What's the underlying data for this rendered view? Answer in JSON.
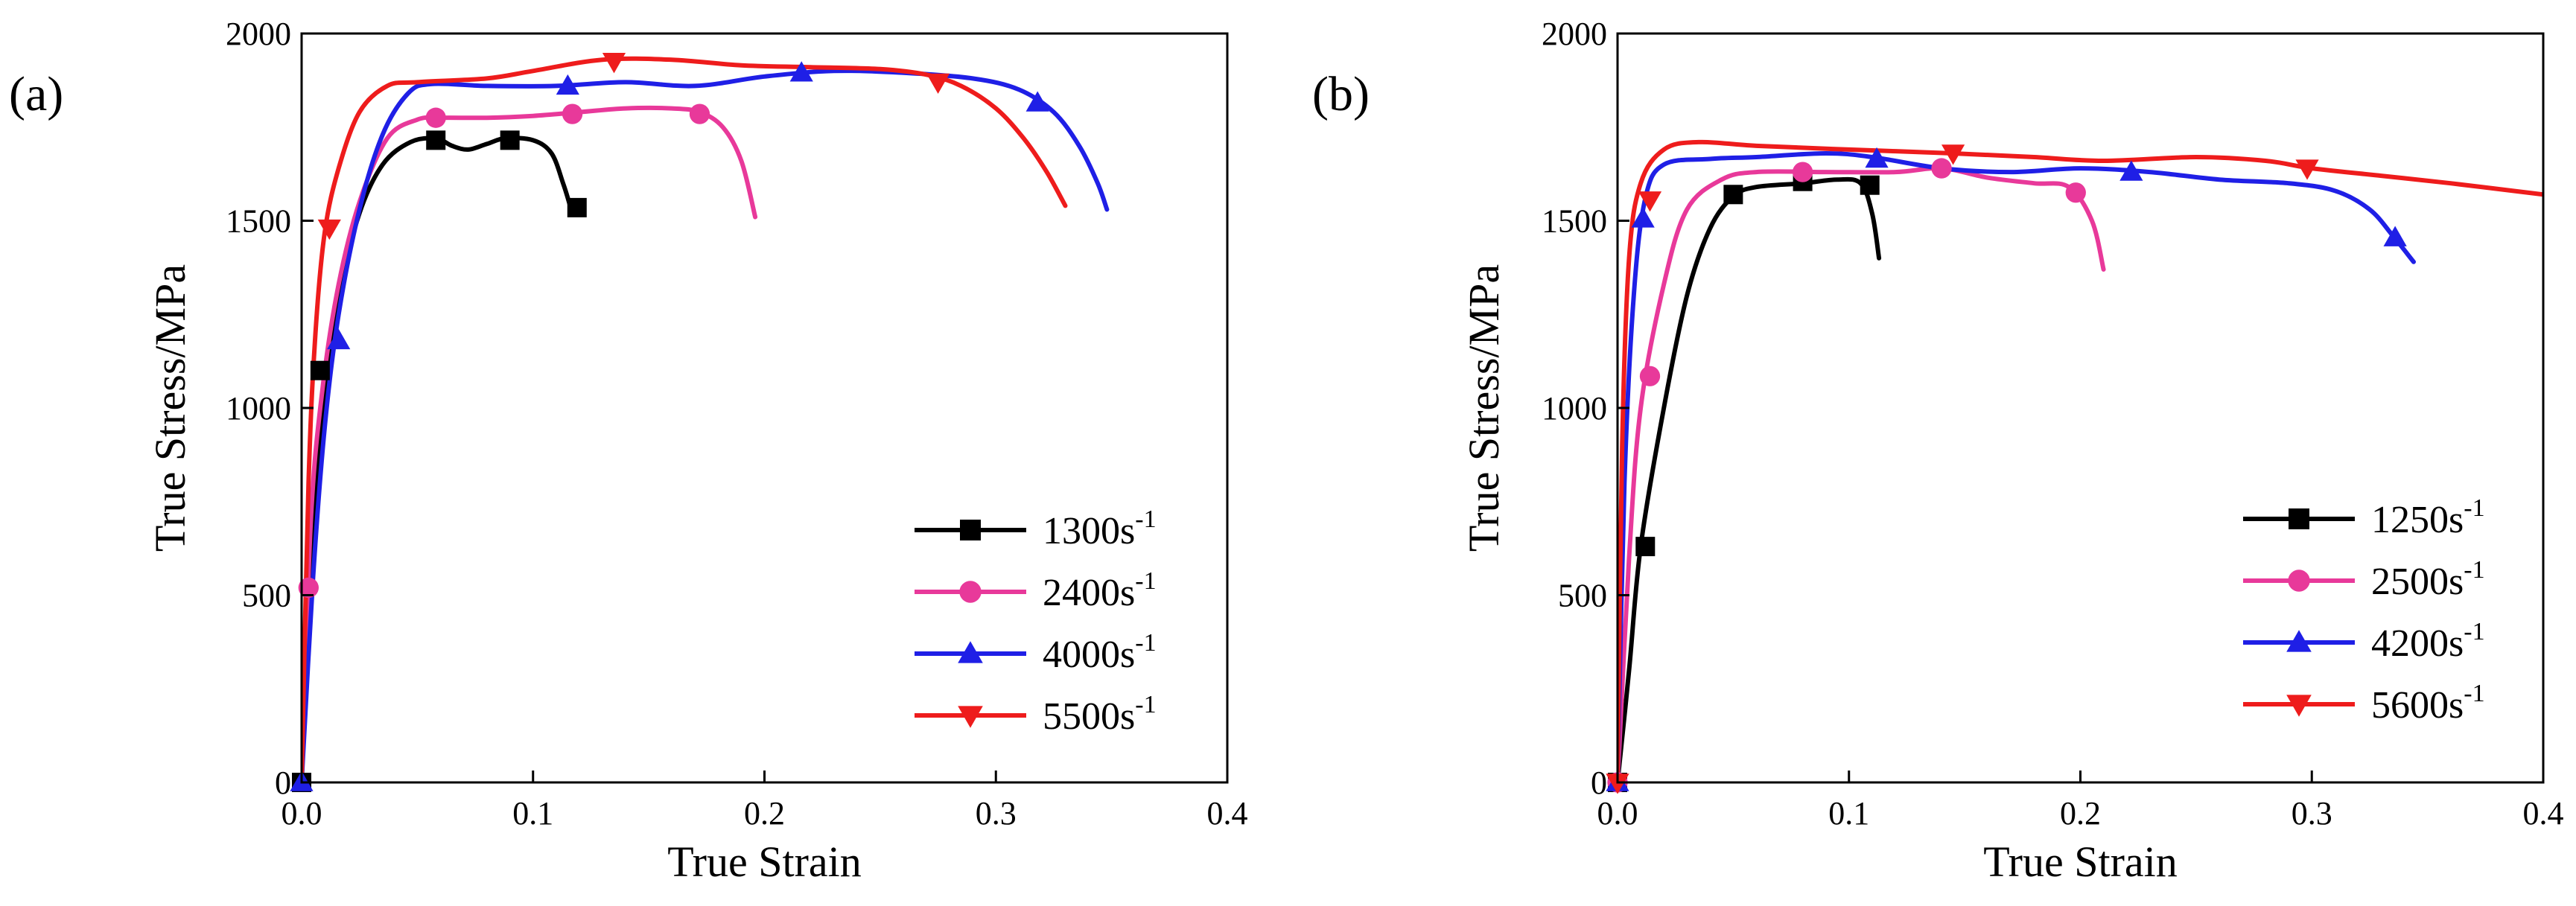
{
  "chart_data": [
    {
      "type": "line",
      "panel_label": "(a)",
      "xlabel": "True Strain",
      "ylabel": "True Stress/MPa",
      "xlim": [
        0,
        0.4
      ],
      "ylim": [
        0,
        2000
      ],
      "xticks": [
        "0.0",
        "0.1",
        "0.2",
        "0.3",
        "0.4"
      ],
      "yticks": [
        "0",
        "500",
        "1000",
        "1500",
        "2000"
      ],
      "legend_position": "bottom-right",
      "series": [
        {
          "name": "1300s-1",
          "rate": "1300",
          "unit": "s",
          "sup": "-1",
          "color": "#000000",
          "marker": "square",
          "points": [
            [
              0,
              0
            ],
            [
              0.004,
              600
            ],
            [
              0.009,
              1000
            ],
            [
              0.016,
              1300
            ],
            [
              0.025,
              1520
            ],
            [
              0.035,
              1650
            ],
            [
              0.047,
              1710
            ],
            [
              0.058,
              1720
            ],
            [
              0.065,
              1700
            ],
            [
              0.072,
              1690
            ],
            [
              0.08,
              1705
            ],
            [
              0.088,
              1720
            ],
            [
              0.1,
              1715
            ],
            [
              0.108,
              1680
            ],
            [
              0.113,
              1600
            ],
            [
              0.116,
              1540
            ]
          ],
          "markers": [
            [
              0,
              0
            ],
            [
              0.008,
              1100
            ],
            [
              0.058,
              1715
            ],
            [
              0.09,
              1715
            ],
            [
              0.119,
              1535
            ]
          ]
        },
        {
          "name": "2400s-1",
          "rate": "2400",
          "unit": "s",
          "sup": "-1",
          "color": "#e8399a",
          "marker": "circle",
          "points": [
            [
              0,
              0
            ],
            [
              0.004,
              700
            ],
            [
              0.009,
              1050
            ],
            [
              0.016,
              1330
            ],
            [
              0.025,
              1550
            ],
            [
              0.037,
              1720
            ],
            [
              0.05,
              1770
            ],
            [
              0.06,
              1775
            ],
            [
              0.08,
              1775
            ],
            [
              0.1,
              1780
            ],
            [
              0.12,
              1790
            ],
            [
              0.14,
              1800
            ],
            [
              0.16,
              1800
            ],
            [
              0.172,
              1790
            ],
            [
              0.182,
              1750
            ],
            [
              0.19,
              1660
            ],
            [
              0.196,
              1510
            ]
          ],
          "markers": [
            [
              0.003,
              520
            ],
            [
              0.058,
              1775
            ],
            [
              0.117,
              1785
            ],
            [
              0.172,
              1785
            ]
          ]
        },
        {
          "name": "4000s-1",
          "rate": "4000",
          "unit": "s",
          "sup": "-1",
          "color": "#1f1fe6",
          "marker": "triangle",
          "points": [
            [
              0,
              0
            ],
            [
              0.005,
              550
            ],
            [
              0.01,
              950
            ],
            [
              0.016,
              1250
            ],
            [
              0.025,
              1530
            ],
            [
              0.035,
              1730
            ],
            [
              0.046,
              1840
            ],
            [
              0.056,
              1865
            ],
            [
              0.08,
              1860
            ],
            [
              0.11,
              1860
            ],
            [
              0.14,
              1870
            ],
            [
              0.17,
              1860
            ],
            [
              0.2,
              1885
            ],
            [
              0.23,
              1900
            ],
            [
              0.26,
              1895
            ],
            [
              0.29,
              1880
            ],
            [
              0.31,
              1850
            ],
            [
              0.325,
              1790
            ],
            [
              0.336,
              1700
            ],
            [
              0.344,
              1600
            ],
            [
              0.348,
              1530
            ]
          ],
          "markers": [
            [
              0,
              0
            ],
            [
              0.016,
              1180
            ],
            [
              0.115,
              1860
            ],
            [
              0.216,
              1895
            ],
            [
              0.318,
              1815
            ]
          ]
        },
        {
          "name": "5500s-1",
          "rate": "5500",
          "unit": "s",
          "sup": "-1",
          "color": "#ee1c1c",
          "marker": "triangle-down",
          "points": [
            [
              0,
              0
            ],
            [
              0.003,
              800
            ],
            [
              0.006,
              1200
            ],
            [
              0.01,
              1470
            ],
            [
              0.016,
              1640
            ],
            [
              0.025,
              1790
            ],
            [
              0.037,
              1860
            ],
            [
              0.05,
              1870
            ],
            [
              0.08,
              1880
            ],
            [
              0.1,
              1900
            ],
            [
              0.13,
              1930
            ],
            [
              0.16,
              1930
            ],
            [
              0.19,
              1915
            ],
            [
              0.22,
              1910
            ],
            [
              0.25,
              1905
            ],
            [
              0.27,
              1890
            ],
            [
              0.285,
              1860
            ],
            [
              0.3,
              1800
            ],
            [
              0.312,
              1720
            ],
            [
              0.322,
              1630
            ],
            [
              0.33,
              1540
            ]
          ],
          "markers": [
            [
              0.012,
              1480
            ],
            [
              0.135,
              1925
            ],
            [
              0.275,
              1870
            ]
          ]
        }
      ]
    },
    {
      "type": "line",
      "panel_label": "(b)",
      "xlabel": "True Strain",
      "ylabel": "True Stress/MPa",
      "xlim": [
        0,
        0.4
      ],
      "ylim": [
        0,
        2000
      ],
      "xticks": [
        "0.0",
        "0.1",
        "0.2",
        "0.3",
        "0.4"
      ],
      "yticks": [
        "0",
        "500",
        "1000",
        "1500",
        "2000"
      ],
      "legend_position": "bottom-right",
      "series": [
        {
          "name": "1250s-1",
          "rate": "1250",
          "unit": "s",
          "sup": "-1",
          "color": "#000000",
          "marker": "square",
          "points": [
            [
              0,
              0
            ],
            [
              0.005,
              300
            ],
            [
              0.01,
              630
            ],
            [
              0.02,
              1000
            ],
            [
              0.03,
              1300
            ],
            [
              0.04,
              1480
            ],
            [
              0.05,
              1565
            ],
            [
              0.06,
              1590
            ],
            [
              0.08,
              1600
            ],
            [
              0.095,
              1610
            ],
            [
              0.105,
              1600
            ],
            [
              0.11,
              1520
            ],
            [
              0.113,
              1400
            ]
          ],
          "markers": [
            [
              0,
              0
            ],
            [
              0.012,
              630
            ],
            [
              0.05,
              1570
            ],
            [
              0.08,
              1605
            ],
            [
              0.109,
              1595
            ]
          ]
        },
        {
          "name": "2500s-1",
          "rate": "2500",
          "unit": "s",
          "sup": "-1",
          "color": "#e8399a",
          "marker": "circle",
          "points": [
            [
              0,
              0
            ],
            [
              0.005,
              600
            ],
            [
              0.01,
              1000
            ],
            [
              0.02,
              1330
            ],
            [
              0.03,
              1530
            ],
            [
              0.045,
              1610
            ],
            [
              0.06,
              1630
            ],
            [
              0.09,
              1630
            ],
            [
              0.12,
              1630
            ],
            [
              0.14,
              1640
            ],
            [
              0.16,
              1615
            ],
            [
              0.18,
              1600
            ],
            [
              0.195,
              1590
            ],
            [
              0.205,
              1500
            ],
            [
              0.21,
              1370
            ]
          ],
          "markers": [
            [
              0,
              0
            ],
            [
              0.014,
              1085
            ],
            [
              0.08,
              1630
            ],
            [
              0.14,
              1640
            ],
            [
              0.198,
              1575
            ]
          ]
        },
        {
          "name": "4200s-1",
          "rate": "4200",
          "unit": "s",
          "sup": "-1",
          "color": "#1f1fe6",
          "marker": "triangle",
          "points": [
            [
              0,
              0
            ],
            [
              0.003,
              800
            ],
            [
              0.007,
              1300
            ],
            [
              0.012,
              1560
            ],
            [
              0.02,
              1650
            ],
            [
              0.04,
              1665
            ],
            [
              0.06,
              1670
            ],
            [
              0.09,
              1680
            ],
            [
              0.11,
              1670
            ],
            [
              0.14,
              1640
            ],
            [
              0.17,
              1630
            ],
            [
              0.2,
              1640
            ],
            [
              0.23,
              1630
            ],
            [
              0.26,
              1610
            ],
            [
              0.29,
              1600
            ],
            [
              0.31,
              1580
            ],
            [
              0.325,
              1530
            ],
            [
              0.335,
              1460
            ],
            [
              0.344,
              1390
            ]
          ],
          "markers": [
            [
              0,
              0
            ],
            [
              0.011,
              1505
            ],
            [
              0.112,
              1665
            ],
            [
              0.222,
              1630
            ],
            [
              0.336,
              1455
            ]
          ]
        },
        {
          "name": "5600s-1",
          "rate": "5600",
          "unit": "s",
          "sup": "-1",
          "color": "#ee1c1c",
          "marker": "triangle-down",
          "points": [
            [
              0,
              0
            ],
            [
              0.002,
              900
            ],
            [
              0.005,
              1400
            ],
            [
              0.01,
              1600
            ],
            [
              0.02,
              1690
            ],
            [
              0.035,
              1710
            ],
            [
              0.06,
              1700
            ],
            [
              0.1,
              1690
            ],
            [
              0.145,
              1680
            ],
            [
              0.18,
              1670
            ],
            [
              0.21,
              1660
            ],
            [
              0.25,
              1670
            ],
            [
              0.28,
              1660
            ],
            [
              0.3,
              1640
            ],
            [
              0.33,
              1620
            ],
            [
              0.36,
              1600
            ],
            [
              0.4,
              1570
            ]
          ],
          "markers": [
            [
              0,
              0
            ],
            [
              0.014,
              1555
            ],
            [
              0.145,
              1680
            ],
            [
              0.298,
              1640
            ]
          ]
        }
      ]
    }
  ]
}
